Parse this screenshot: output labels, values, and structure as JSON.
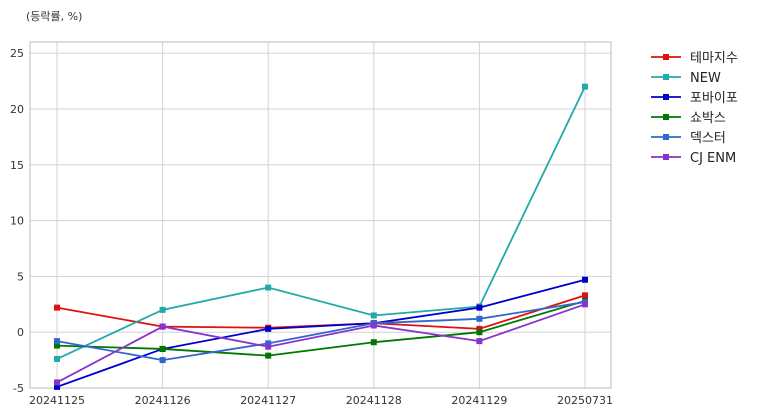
{
  "chart_data": {
    "type": "line",
    "unit_label": "(등락률, %)",
    "categories": [
      "20241125",
      "20241126",
      "20241127",
      "20241128",
      "20241129",
      "20250731"
    ],
    "ylim": [
      -5,
      26
    ],
    "yticks": [
      -5,
      0,
      5,
      10,
      15,
      20,
      25
    ],
    "grid": true,
    "legend_position": "right",
    "series": [
      {
        "name": "테마지수",
        "color": "#dd1111",
        "values": [
          2.2,
          0.5,
          0.4,
          0.8,
          0.3,
          3.3
        ]
      },
      {
        "name": "NEW",
        "color": "#22aaaa",
        "values": [
          -2.4,
          2.0,
          4.0,
          1.5,
          2.3,
          22.0
        ]
      },
      {
        "name": "포바이포",
        "color": "#0000cc",
        "values": [
          -4.9,
          -1.5,
          0.3,
          0.8,
          2.2,
          4.7
        ]
      },
      {
        "name": "쇼박스",
        "color": "#007700",
        "values": [
          -1.2,
          -1.5,
          -2.1,
          -0.9,
          0.0,
          2.8
        ]
      },
      {
        "name": "덱스터",
        "color": "#3366cc",
        "values": [
          -0.8,
          -2.5,
          -1.0,
          0.8,
          1.2,
          2.7
        ]
      },
      {
        "name": "CJ ENM",
        "color": "#8833cc",
        "values": [
          -4.5,
          0.5,
          -1.3,
          0.6,
          -0.8,
          2.5
        ]
      }
    ]
  }
}
